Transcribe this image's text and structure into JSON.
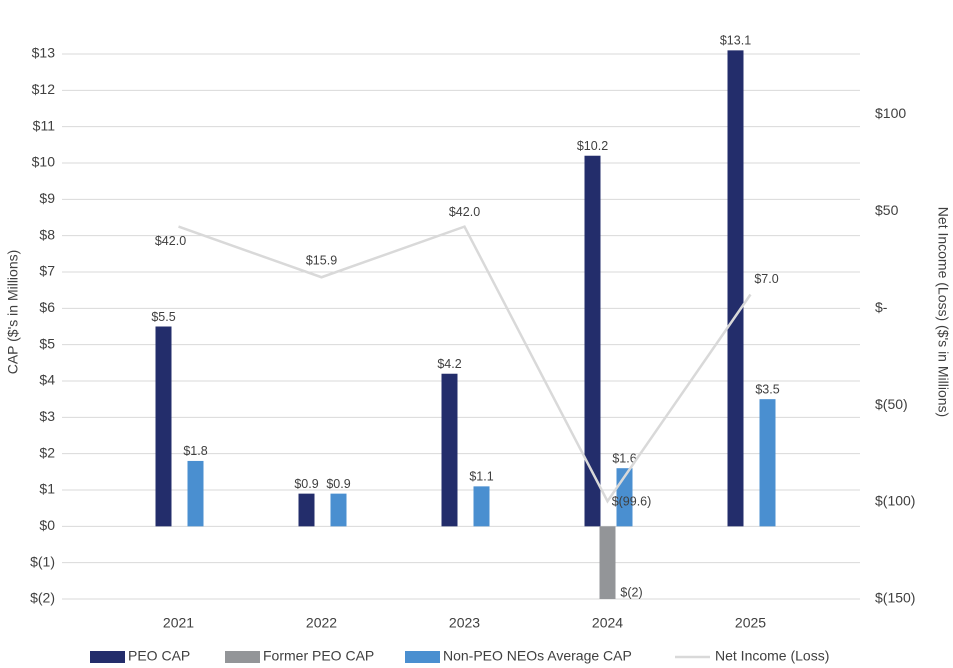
{
  "chart_data": {
    "type": "bar-line",
    "y_label": "CAP ($'s in Millions)",
    "y2_label": "Net Income (Loss) ($'s in Millions)",
    "categories": [
      "2021",
      "2022",
      "2023",
      "2024",
      "2025"
    ],
    "series": [
      {
        "name": "PEO CAP",
        "type": "bar",
        "color": "#232d6b",
        "values": [
          5.5,
          0.9,
          4.2,
          10.2,
          13.1
        ],
        "value_labels": [
          "$5.5",
          "$0.9",
          "$4.2",
          "$10.2",
          "$13.1"
        ]
      },
      {
        "name": "Former PEO CAP",
        "type": "bar",
        "color": "#939598",
        "values": [
          null,
          null,
          null,
          -2,
          null
        ],
        "value_labels": [
          null,
          null,
          null,
          "$(2)",
          null
        ]
      },
      {
        "name": "Non-PEO NEOs Average CAP",
        "type": "bar",
        "color": "#4a8fd0",
        "values": [
          1.8,
          0.9,
          1.1,
          1.6,
          3.5
        ],
        "value_labels": [
          "$1.8",
          "$0.9",
          "$1.1",
          "$1.6",
          "$3.5"
        ]
      },
      {
        "name": "Net Income (Loss)",
        "type": "line",
        "axis": "y2",
        "color": "#d9d9d9",
        "values": [
          42.0,
          15.9,
          42.0,
          -99.6,
          7.0
        ],
        "value_labels": [
          "$42.0",
          "$15.9",
          "$42.0",
          "$(99.6)",
          "$7.0"
        ]
      }
    ],
    "ylim": [
      -2,
      13
    ],
    "yticks": [
      {
        "value": -2,
        "label": "$(2)"
      },
      {
        "value": -1,
        "label": "$(1)"
      },
      {
        "value": 0,
        "label": "$0"
      },
      {
        "value": 1,
        "label": "$1"
      },
      {
        "value": 2,
        "label": "$2"
      },
      {
        "value": 3,
        "label": "$3"
      },
      {
        "value": 4,
        "label": "$4"
      },
      {
        "value": 5,
        "label": "$5"
      },
      {
        "value": 6,
        "label": "$6"
      },
      {
        "value": 7,
        "label": "$7"
      },
      {
        "value": 8,
        "label": "$8"
      },
      {
        "value": 9,
        "label": "$9"
      },
      {
        "value": 10,
        "label": "$10"
      },
      {
        "value": 11,
        "label": "$11"
      },
      {
        "value": 12,
        "label": "$12"
      },
      {
        "value": 13,
        "label": "$13"
      }
    ],
    "y2lim": [
      -150,
      131
    ],
    "y2ticks": [
      {
        "value": -150,
        "label": "$(150)"
      },
      {
        "value": -100,
        "label": "$(100)"
      },
      {
        "value": -50,
        "label": "$(50)"
      },
      {
        "value": 0,
        "label": "$-"
      },
      {
        "value": 50,
        "label": "$50"
      },
      {
        "value": 100,
        "label": "$100"
      }
    ],
    "grid": true,
    "legend": "bottom"
  }
}
